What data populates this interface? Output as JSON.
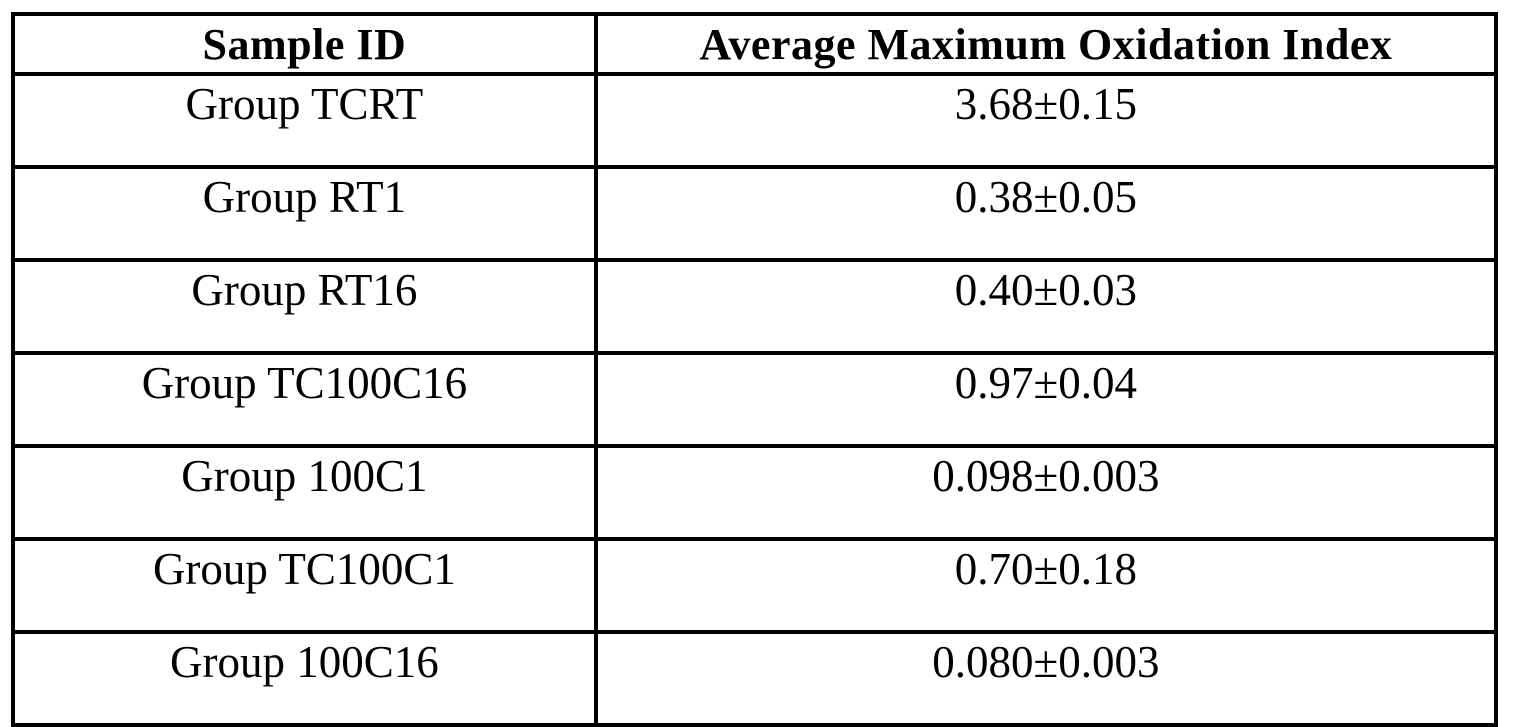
{
  "document": {
    "table": {
      "columns": [
        "Sample ID",
        "Average Maximum Oxidation Index"
      ],
      "rows": [
        {
          "sample_id": "Group TCRT",
          "value": "3.68±0.15"
        },
        {
          "sample_id": "Group RT1",
          "value": "0.38±0.05"
        },
        {
          "sample_id": "Group RT16",
          "value": "0.40±0.03"
        },
        {
          "sample_id": "Group TC100C16",
          "value": "0.97±0.04"
        },
        {
          "sample_id": "Group 100C1",
          "value": "0.098±0.003"
        },
        {
          "sample_id": "Group TC100C1",
          "value": "0.70±0.18"
        },
        {
          "sample_id": "Group 100C16",
          "value": "0.080±0.003"
        }
      ]
    }
  },
  "chart_data": {
    "type": "table",
    "title": "",
    "columns": [
      "Sample ID",
      "Average Maximum Oxidation Index"
    ],
    "categories": [
      "Group TCRT",
      "Group RT1",
      "Group RT16",
      "Group TC100C16",
      "Group 100C1",
      "Group TC100C1",
      "Group 100C16"
    ],
    "values": [
      3.68,
      0.38,
      0.4,
      0.97,
      0.098,
      0.7,
      0.08
    ],
    "errors": [
      0.15,
      0.05,
      0.03,
      0.04,
      0.003,
      0.18,
      0.003
    ]
  },
  "colors": {
    "background": "#ffffff",
    "border": "#000000",
    "text": "#000000"
  }
}
